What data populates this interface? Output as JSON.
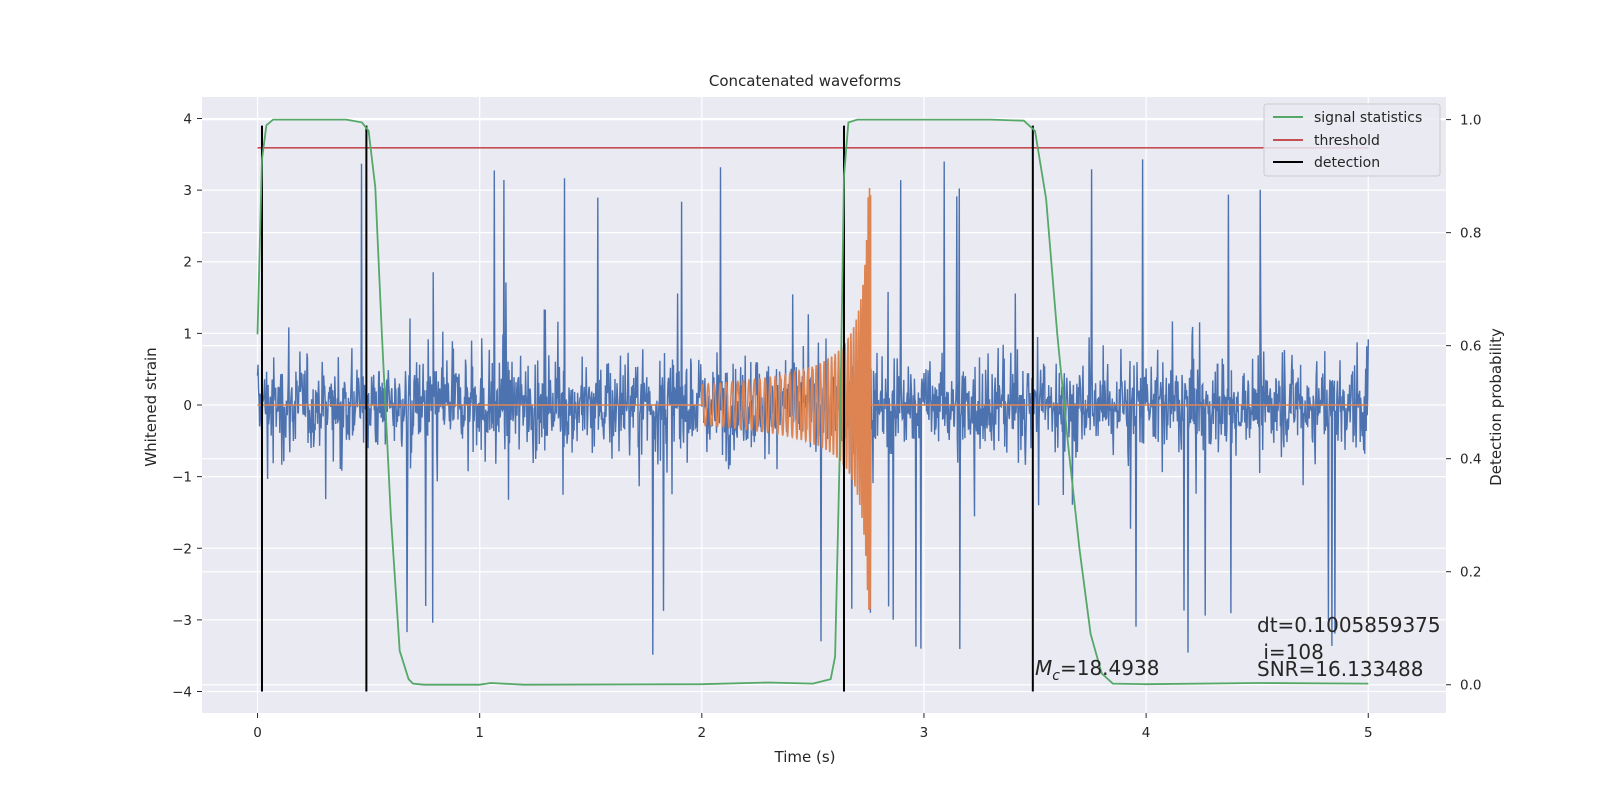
{
  "chart_data": {
    "type": "line",
    "title": "Concatenated waveforms",
    "xlabel": "Time (s)",
    "ylabel": "Whitened strain",
    "y2label": "Detection probability",
    "xlim": [
      -0.25,
      5.35
    ],
    "ylim": [
      -4.3,
      4.3
    ],
    "y2lim": [
      -0.05,
      1.04
    ],
    "xticks": [
      0,
      1,
      2,
      3,
      4,
      5
    ],
    "yticks": [
      -4,
      -3,
      -2,
      -1,
      0,
      1,
      2,
      3,
      4
    ],
    "y2ticks": [
      0.0,
      0.2,
      0.4,
      0.6,
      0.8,
      1.0
    ],
    "tick_labels": {
      "x": [
        "0",
        "1",
        "2",
        "3",
        "4",
        "5"
      ],
      "y": [
        "−4",
        "−3",
        "−2",
        "−1",
        "0",
        "1",
        "2",
        "3",
        "4"
      ],
      "y2": [
        "0.0",
        "0.2",
        "0.4",
        "0.6",
        "0.8",
        "1.0"
      ]
    },
    "grid": true,
    "legend_position": "top-right",
    "colors": {
      "background": "#eaeaf2",
      "strain": "#4c72b0",
      "template": "#dd8452",
      "signal_statistics": "#55a868",
      "threshold": "#c44e52",
      "detection": "#000000"
    },
    "legend": [
      "signal statistics",
      "threshold",
      "detection"
    ],
    "series": [
      {
        "name": "signal statistics",
        "axis": "right",
        "x": [
          0.0,
          0.02,
          0.04,
          0.07,
          0.1,
          0.2,
          0.4,
          0.47,
          0.5,
          0.53,
          0.56,
          0.6,
          0.64,
          0.68,
          0.7,
          0.75,
          1.0,
          1.05,
          1.2,
          2.0,
          2.3,
          2.5,
          2.58,
          2.6,
          2.62,
          2.64,
          2.66,
          2.7,
          2.75,
          3.0,
          3.3,
          3.45,
          3.5,
          3.55,
          3.6,
          3.65,
          3.7,
          3.75,
          3.8,
          3.85,
          4.0,
          4.5,
          5.0
        ],
        "y": [
          0.62,
          0.93,
          0.99,
          1.0,
          1.0,
          1.0,
          1.0,
          0.995,
          0.98,
          0.88,
          0.62,
          0.3,
          0.06,
          0.01,
          0.002,
          0.0,
          0.0,
          0.003,
          0.0,
          0.001,
          0.004,
          0.002,
          0.01,
          0.05,
          0.4,
          0.9,
          0.995,
          1.0,
          1.0,
          1.0,
          1.0,
          0.998,
          0.98,
          0.86,
          0.62,
          0.42,
          0.24,
          0.09,
          0.02,
          0.002,
          0.001,
          0.003,
          0.002
        ]
      },
      {
        "name": "threshold",
        "axis": "right",
        "x": [
          0.0,
          5.0
        ],
        "y": [
          0.95,
          0.95
        ]
      },
      {
        "name": "detection",
        "axis": "left",
        "x": [
          0.02,
          0.49,
          2.64,
          3.49
        ],
        "ymin": -4,
        "ymax": 3.9
      },
      {
        "axis": "left",
        "x_range": [
          0.0,
          5.0
        ],
        "typical_abs": 0.8,
        "peak_abs": 3.5
      },
      {
        "axis": "left",
        "x_range": [
          2.0,
          2.76
        ],
        "peak": 3.1,
        "trough": -2.85
      }
    ],
    "annotations": [
      "M",
      "c",
      "=18.4938",
      "dt=0.1005859375",
      " i=108",
      "SNR=16.133488"
    ]
  }
}
